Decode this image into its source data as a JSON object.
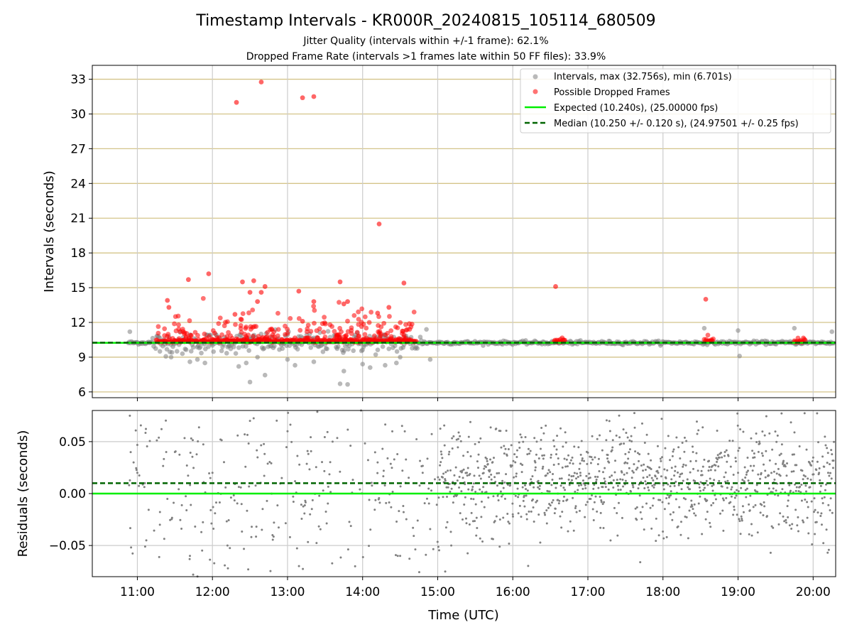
{
  "chart_data": [
    {
      "type": "scatter",
      "title": "Timestamp Intervals - KR000R_20240815_105114_680509",
      "subtitle_lines": [
        "Jitter Quality (intervals within +/-1 frame): 62.1%",
        "Dropped Frame Rate (intervals >1 frames late within 50 FF files): 33.9%"
      ],
      "ylabel": "Intervals (seconds)",
      "xlim_hours": [
        10.4,
        20.3
      ],
      "ylim": [
        5.5,
        34.2
      ],
      "yticks": [
        6,
        9,
        12,
        15,
        18,
        21,
        24,
        27,
        30,
        33
      ],
      "ytick_labels": [
        "6",
        "9",
        "12",
        "15",
        "18",
        "21",
        "24",
        "27",
        "30",
        "33"
      ],
      "grid": true,
      "legend_position": "top-right",
      "legend": [
        "Intervals, max (32.756s), min (6.701s)",
        "Possible Dropped Frames",
        "Expected (10.240s), (25.00000 fps)",
        "Median (10.250 +/- 0.120 s), (24.97501 +/- 0.25 fps)"
      ],
      "series": [
        {
          "name": "Intervals, max (32.756s), min (6.701s)",
          "color": "#808080",
          "note_points_approx": "dense band around 10.25 s from ~10:52 to 20:20; wide scatter 9-11 s between 11:15 and 14:45",
          "x_hours": [
            10.9,
            11.3,
            11.45,
            11.6,
            11.7,
            11.8,
            11.9,
            12.35,
            12.45,
            12.5,
            12.6,
            12.7,
            13.0,
            13.1,
            13.35,
            13.7,
            13.75,
            13.8,
            14.0,
            14.1,
            14.3,
            14.45,
            14.5,
            14.9,
            14.85,
            18.55,
            19.0,
            19.02,
            19.75,
            20.25
          ],
          "y": [
            11.2,
            9.5,
            9.0,
            9.3,
            8.6,
            8.8,
            8.5,
            8.2,
            8.5,
            6.85,
            9.0,
            7.45,
            8.8,
            8.3,
            8.6,
            6.7,
            7.8,
            6.65,
            8.4,
            8.1,
            8.3,
            8.5,
            9.0,
            8.8,
            11.4,
            11.5,
            11.3,
            9.1,
            11.5,
            11.2
          ]
        },
        {
          "name": "Possible Dropped Frames",
          "color": "#ff0000",
          "x_hours": [
            11.4,
            11.42,
            11.68,
            11.95,
            12.3,
            12.4,
            12.5,
            12.55,
            12.6,
            12.65,
            12.7,
            13.15,
            13.2,
            13.35,
            13.7,
            13.75,
            13.8,
            14.2,
            14.35,
            14.55,
            16.57,
            18.57,
            12.32,
            12.65,
            13.2,
            13.35,
            14.22
          ],
          "y": [
            13.9,
            13.3,
            15.7,
            16.2,
            12.7,
            15.5,
            14.6,
            15.6,
            13.8,
            14.6,
            15.1,
            14.7,
            12.1,
            13.8,
            15.5,
            13.6,
            13.8,
            12.8,
            13.3,
            15.4,
            15.1,
            14.0,
            31.0,
            32.76,
            31.4,
            31.5,
            20.5
          ]
        },
        {
          "name": "Expected (10.240s), (25.00000 fps)",
          "type": "hline",
          "y": 10.24,
          "color": "#00ee00"
        },
        {
          "name": "Median (10.250 +/- 0.120 s), (24.97501 +/- 0.25 fps)",
          "type": "hline",
          "y": 10.25,
          "color": "#006400",
          "dashed": true
        }
      ]
    },
    {
      "type": "scatter",
      "ylabel": "Residuals (seconds)",
      "xlabel": "Time (UTC)",
      "xlim_hours": [
        10.4,
        20.3
      ],
      "xticks_hours": [
        11,
        12,
        13,
        14,
        15,
        16,
        17,
        18,
        19,
        20
      ],
      "xtick_labels": [
        "11:00",
        "12:00",
        "13:00",
        "14:00",
        "15:00",
        "16:00",
        "17:00",
        "18:00",
        "19:00",
        "20:00"
      ],
      "ylim": [
        -0.08,
        0.08
      ],
      "yticks": [
        -0.05,
        0.0,
        0.05
      ],
      "ytick_labels": [
        "−0.05",
        "0.00",
        "0.05"
      ],
      "grid": true,
      "series": [
        {
          "name": "",
          "color": "#808080",
          "note_points_approx": "scatter of residuals of intervals about expected, spread roughly -0.08 to 0.08 s across the time range, denser near 0-0.03 after 15:00",
          "x_hours": [
            10.9,
            10.95,
            11.0,
            11.1,
            11.3,
            11.5,
            11.7,
            12.0,
            12.2,
            12.5,
            12.8,
            13.0,
            13.3,
            13.6,
            13.9,
            14.2,
            14.5,
            14.8,
            15.1,
            15.4,
            15.7,
            16.0,
            16.3,
            16.6,
            16.9,
            17.2,
            17.5,
            17.8,
            18.1,
            18.4,
            18.7,
            19.0,
            19.3,
            19.6,
            19.9,
            20.2
          ],
          "y": [
            0.075,
            0.03,
            0.02,
            0.01,
            -0.03,
            0.04,
            -0.06,
            0.02,
            -0.05,
            0.07,
            -0.04,
            0.06,
            -0.02,
            0.05,
            -0.07,
            0.03,
            -0.06,
            0.02,
            -0.075,
            0.04,
            0.01,
            -0.02,
            0.03,
            0.0,
            0.02,
            -0.01,
            0.03,
            0.01,
            -0.02,
            0.04,
            0.0,
            0.02,
            -0.01,
            0.03,
            0.01,
            0.02
          ]
        },
        {
          "name": "",
          "type": "hline",
          "y": 0.0,
          "color": "#00ee00"
        },
        {
          "name": "",
          "type": "hline",
          "y": 0.01,
          "color": "#006400",
          "dashed": true
        }
      ]
    }
  ]
}
